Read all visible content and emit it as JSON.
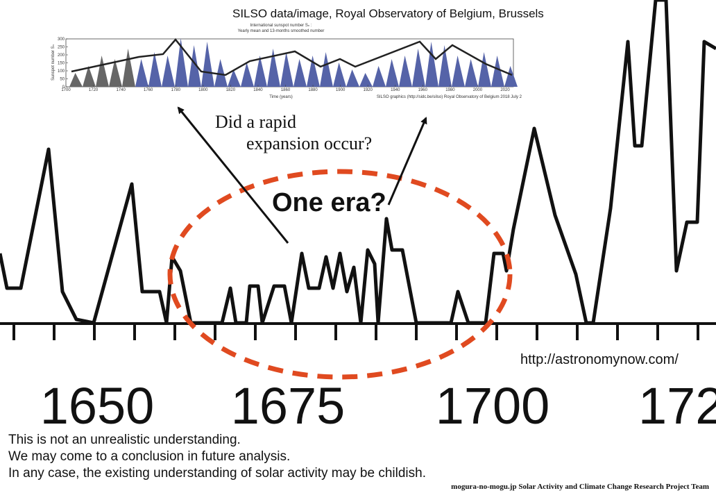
{
  "credit_top": "SILSO data/image, Royal Observatory of Belgium, Brussels",
  "inset": {
    "title_lines": [
      "International sunspot number Sₙ :",
      "Yearly mean and 13-months smoothed number"
    ],
    "y_label": "Sunspot number Sₙ",
    "x_label": "Time (years)",
    "yticks": [
      0,
      50,
      100,
      150,
      200,
      250,
      300
    ],
    "xticks": [
      1700,
      1720,
      1740,
      1760,
      1780,
      1800,
      1820,
      1840,
      1860,
      1880,
      1900,
      1920,
      1940,
      1960,
      1980,
      2000,
      2020
    ],
    "footer": "SILSO graphics (http://sidc.be/silso) Royal Observatory of Belgium 2018 July 2"
  },
  "main": {
    "xlabels": [
      "1650",
      "1675",
      "1700",
      "172"
    ]
  },
  "annotations": {
    "question": [
      "Did a rapid",
      "expansion occur?"
    ],
    "era": "One era?"
  },
  "source": "http://astronomynow.com/",
  "notes": [
    "This is not an unrealistic understanding.",
    "We may come to a conclusion in future analysis.",
    "In any case, the existing understanding of solar activity may be childish."
  ],
  "footer": "mogura-no-mogu.jp Solar Activity and Climate Change Research Project Team"
}
